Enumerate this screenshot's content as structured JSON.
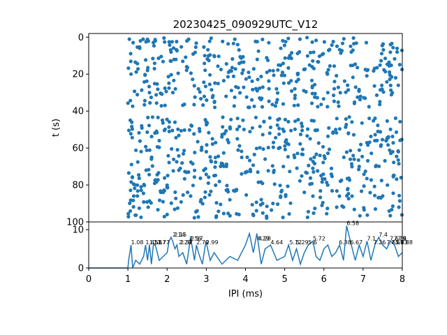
{
  "title": "20230425_090929UTC_V12",
  "colors": {
    "series": "#1f77b4",
    "axes": "#000000",
    "background": "#ffffff"
  },
  "chart_data": [
    {
      "type": "scatter",
      "title": "20230425_090929UTC_V12",
      "ylabel": "t (s)",
      "xlim": [
        0,
        8
      ],
      "ylim": [
        100,
        -2
      ],
      "y_inverted": true,
      "yticks": [
        0,
        20,
        40,
        60,
        80,
        100
      ],
      "ytick_labels": [
        "0",
        "20",
        "40",
        "60",
        "80",
        "100"
      ],
      "x_shared_with_lower_panel": true,
      "grid": false,
      "point_count_estimate": 900,
      "x_range_of_points": [
        1.0,
        8.0
      ],
      "points_sample": [
        [
          1.08,
          20
        ],
        [
          1.1,
          46
        ],
        [
          1.15,
          86
        ],
        [
          1.3,
          6
        ],
        [
          1.35,
          48
        ],
        [
          1.5,
          18
        ],
        [
          1.55,
          30
        ],
        [
          1.6,
          66
        ],
        [
          1.7,
          2
        ],
        [
          1.8,
          56
        ],
        [
          1.9,
          84
        ],
        [
          2.0,
          96
        ],
        [
          2.1,
          8
        ],
        [
          2.2,
          46
        ],
        [
          2.3,
          72
        ],
        [
          2.5,
          16
        ],
        [
          2.6,
          86
        ],
        [
          2.8,
          28
        ],
        [
          3.0,
          62
        ],
        [
          3.2,
          10
        ],
        [
          3.4,
          54
        ],
        [
          3.6,
          88
        ],
        [
          3.8,
          4
        ],
        [
          3.9,
          74
        ],
        [
          4.1,
          38
        ],
        [
          4.3,
          12
        ],
        [
          4.5,
          66
        ],
        [
          4.7,
          90
        ],
        [
          4.9,
          6
        ],
        [
          5.1,
          58
        ],
        [
          5.3,
          24
        ],
        [
          5.5,
          84
        ],
        [
          5.7,
          16
        ],
        [
          5.9,
          64
        ],
        [
          6.1,
          30
        ],
        [
          6.3,
          50
        ],
        [
          6.5,
          92
        ],
        [
          6.7,
          8
        ],
        [
          6.9,
          70
        ],
        [
          7.1,
          18
        ],
        [
          7.3,
          56
        ],
        [
          7.5,
          86
        ],
        [
          7.7,
          4
        ],
        [
          7.9,
          62
        ]
      ],
      "gap_in_t": [
        38,
        43
      ]
    },
    {
      "type": "line",
      "xlabel": "IPI (ms)",
      "ylabel": "",
      "xlim": [
        0,
        8
      ],
      "ylim": [
        0,
        12
      ],
      "xticks": [
        0,
        1,
        2,
        3,
        4,
        5,
        6,
        7,
        8
      ],
      "xtick_labels": [
        "0",
        "1",
        "2",
        "3",
        "4",
        "5",
        "6",
        "7",
        "8"
      ],
      "yticks": [
        0,
        10
      ],
      "ytick_labels": [
        "0",
        "10"
      ],
      "grid": false,
      "series": [
        {
          "x": [
            0,
            1.0,
            1.02,
            1.08,
            1.12,
            1.2,
            1.3,
            1.4,
            1.45,
            1.5,
            1.55,
            1.6,
            1.65,
            1.7,
            1.8,
            1.9,
            2.0,
            2.05,
            2.1,
            2.14,
            2.2,
            2.25,
            2.3,
            2.4,
            2.5,
            2.6,
            2.7,
            2.75,
            2.8,
            2.9,
            2.99,
            3.1,
            3.2,
            3.4,
            3.6,
            3.8,
            4.0,
            4.1,
            4.2,
            4.29,
            4.4,
            4.5,
            4.64,
            4.8,
            5.0,
            5.1,
            5.2,
            5.3,
            5.4,
            5.5,
            5.6,
            5.72,
            5.8,
            5.9,
            6.0,
            6.1,
            6.2,
            6.3,
            6.4,
            6.5,
            6.58,
            6.7,
            6.8,
            6.9,
            7.0,
            7.1,
            7.2,
            7.3,
            7.4,
            7.5,
            7.6,
            7.7,
            7.8,
            7.9,
            8.0
          ],
          "y": [
            0,
            0,
            2,
            6,
            0,
            2,
            1,
            3,
            6,
            2,
            6,
            1,
            6,
            6,
            2,
            3,
            4,
            7,
            8,
            7,
            5,
            6,
            3,
            4,
            1,
            8,
            2,
            6,
            4,
            1,
            7,
            2,
            4,
            1,
            3,
            2,
            6,
            9,
            4,
            9,
            1,
            5,
            6,
            2,
            3,
            6,
            2,
            5,
            1,
            4,
            6,
            7,
            3,
            2,
            5,
            6,
            3,
            4,
            6,
            2,
            11,
            6,
            2,
            6,
            3,
            7,
            2,
            6,
            8,
            6,
            5,
            7,
            6,
            3,
            4
          ]
        }
      ],
      "peak_labels": [
        {
          "x": 1.08,
          "y": 6,
          "text": "1.08"
        },
        {
          "x": 1.45,
          "y": 6,
          "text": "1.45"
        },
        {
          "x": 1.55,
          "y": 6,
          "text": "1.51"
        },
        {
          "x": 1.65,
          "y": 6,
          "text": "1.67"
        },
        {
          "x": 1.75,
          "y": 6,
          "text": "1.77"
        },
        {
          "x": 2.14,
          "y": 8,
          "text": "2.14"
        },
        {
          "x": 2.18,
          "y": 8,
          "text": "2.15"
        },
        {
          "x": 2.3,
          "y": 6,
          "text": "2.29"
        },
        {
          "x": 2.34,
          "y": 6,
          "text": "2.37"
        },
        {
          "x": 2.56,
          "y": 7,
          "text": "2.56"
        },
        {
          "x": 2.6,
          "y": 7,
          "text": "2.57"
        },
        {
          "x": 2.75,
          "y": 6,
          "text": "2.79"
        },
        {
          "x": 2.99,
          "y": 6,
          "text": "2.99"
        },
        {
          "x": 4.29,
          "y": 7,
          "text": "4.29"
        },
        {
          "x": 4.33,
          "y": 7,
          "text": "4.28"
        },
        {
          "x": 4.64,
          "y": 6,
          "text": "4.64"
        },
        {
          "x": 5.12,
          "y": 6,
          "text": "5.12"
        },
        {
          "x": 5.29,
          "y": 6,
          "text": "5.29"
        },
        {
          "x": 5.6,
          "y": 6,
          "text": "5.6"
        },
        {
          "x": 5.72,
          "y": 7,
          "text": "5.72"
        },
        {
          "x": 6.38,
          "y": 6,
          "text": "6.38"
        },
        {
          "x": 6.58,
          "y": 11,
          "text": "6.58"
        },
        {
          "x": 6.67,
          "y": 6,
          "text": "6.67"
        },
        {
          "x": 7.1,
          "y": 7,
          "text": "7.1"
        },
        {
          "x": 7.26,
          "y": 6,
          "text": "7.26"
        },
        {
          "x": 7.4,
          "y": 8,
          "text": "7.4"
        },
        {
          "x": 7.6,
          "y": 6,
          "text": "7.65"
        },
        {
          "x": 7.68,
          "y": 7,
          "text": "7.6"
        },
        {
          "x": 7.72,
          "y": 6,
          "text": "7.69"
        },
        {
          "x": 7.78,
          "y": 7,
          "text": "7.79"
        },
        {
          "x": 7.82,
          "y": 6,
          "text": "7.83"
        },
        {
          "x": 7.88,
          "y": 7,
          "text": "7.8"
        },
        {
          "x": 7.95,
          "y": 6,
          "text": "7.88"
        }
      ]
    }
  ]
}
